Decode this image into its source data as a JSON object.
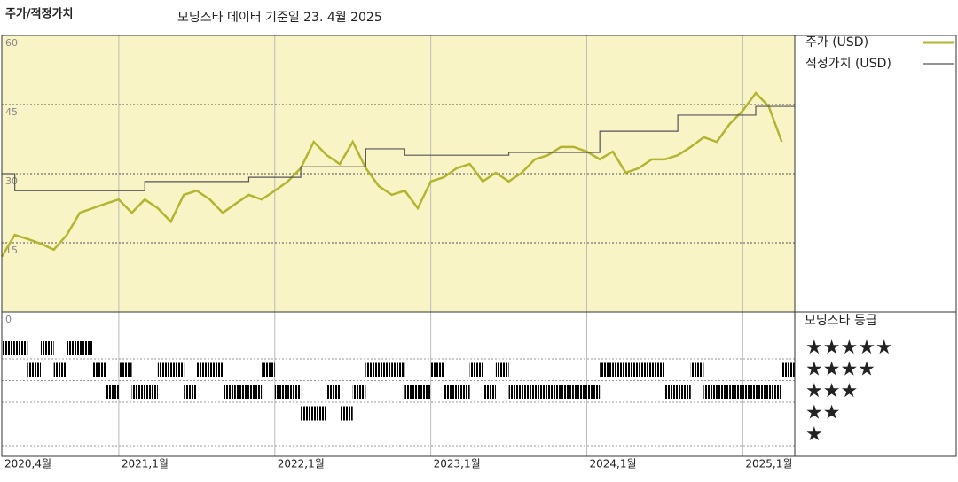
{
  "chart_data": [
    {
      "type": "line",
      "title": "주가/적정가치",
      "subtitle": "모닝스타 데이터 기준일 23. 4월 2025",
      "xlim": [
        "2020-04",
        "2025-05"
      ],
      "xticks": [
        {
          "value": "2020-04",
          "label": "2020,4월"
        },
        {
          "value": "2021-01",
          "label": "2021,1월"
        },
        {
          "value": "2022-01",
          "label": "2022,1월"
        },
        {
          "value": "2023-01",
          "label": "2023,1월"
        },
        {
          "value": "2024-01",
          "label": "2024,1월"
        },
        {
          "value": "2025-01",
          "label": "2025,1월"
        }
      ],
      "ylim": [
        0,
        60
      ],
      "yticks": [
        0,
        15,
        30,
        45,
        60
      ],
      "grid": true,
      "series": [
        {
          "name": "주가 (USD)",
          "color": "#b3b531",
          "step": false,
          "x": [
            "2020-04",
            "2020-05",
            "2020-06",
            "2020-07",
            "2020-08",
            "2020-09",
            "2020-10",
            "2020-11",
            "2020-12",
            "2021-01",
            "2021-02",
            "2021-03",
            "2021-04",
            "2021-05",
            "2021-06",
            "2021-07",
            "2021-08",
            "2021-09",
            "2021-10",
            "2021-11",
            "2021-12",
            "2022-01",
            "2022-02",
            "2022-03",
            "2022-04",
            "2022-05",
            "2022-06",
            "2022-07",
            "2022-08",
            "2022-09",
            "2022-10",
            "2022-11",
            "2022-12",
            "2023-01",
            "2023-02",
            "2023-03",
            "2023-04",
            "2023-05",
            "2023-06",
            "2023-07",
            "2023-08",
            "2023-09",
            "2023-10",
            "2023-11",
            "2023-12",
            "2024-01",
            "2024-02",
            "2024-03",
            "2024-04",
            "2024-05",
            "2024-06",
            "2024-07",
            "2024-08",
            "2024-09",
            "2024-10",
            "2024-11",
            "2024-12",
            "2025-01",
            "2025-02",
            "2025-03",
            "2025-04"
          ],
          "values": [
            12,
            16.7,
            15.8,
            14.8,
            13.5,
            16.7,
            21.5,
            22.5,
            23.5,
            24.4,
            21.5,
            24.4,
            22.5,
            19.6,
            25.4,
            26.3,
            24.4,
            21.5,
            23.5,
            25.4,
            24.4,
            26.3,
            28.3,
            31.2,
            36.9,
            34,
            32.1,
            36.9,
            31.2,
            27.3,
            25.4,
            26.3,
            22.5,
            28.3,
            29.2,
            31.2,
            32.1,
            28.3,
            30.2,
            28.3,
            30.2,
            33.1,
            34,
            35.8,
            35.8,
            34.8,
            33.1,
            34.8,
            30.2,
            31.2,
            33.1,
            33.1,
            34,
            35.8,
            37.9,
            36.9,
            40.8,
            43.7,
            47.5,
            44.6,
            36.9
          ]
        },
        {
          "name": "적정가치 (USD)",
          "color": "#555555",
          "step": true,
          "x": [
            "2020-04",
            "2020-05",
            "2021-03",
            "2021-11",
            "2022-03",
            "2022-08",
            "2022-11",
            "2023-07",
            "2024-02",
            "2024-08",
            "2025-02",
            "2025-05"
          ],
          "values": [
            30,
            26.3,
            28.3,
            29.2,
            31.5,
            35.4,
            34,
            34.6,
            39.2,
            42.7,
            44.6,
            44.6
          ]
        }
      ]
    },
    {
      "type": "rating",
      "title": "모닝스타 등급",
      "categories": [
        "★★★★★",
        "★★★★",
        "★★★",
        "★★",
        "★"
      ],
      "color": "#2b2b2b",
      "highlight_color": "#3d8c70",
      "x": [
        "2020-04",
        "2020-05",
        "2020-06",
        "2020-07",
        "2020-08",
        "2020-09",
        "2020-10",
        "2020-11",
        "2020-12",
        "2021-01",
        "2021-02",
        "2021-03",
        "2021-04",
        "2021-05",
        "2021-06",
        "2021-07",
        "2021-08",
        "2021-09",
        "2021-10",
        "2021-11",
        "2021-12",
        "2022-01",
        "2022-02",
        "2022-03",
        "2022-04",
        "2022-05",
        "2022-06",
        "2022-07",
        "2022-08",
        "2022-09",
        "2022-10",
        "2022-11",
        "2022-12",
        "2023-01",
        "2023-02",
        "2023-03",
        "2023-04",
        "2023-05",
        "2023-06",
        "2023-07",
        "2023-08",
        "2023-09",
        "2023-10",
        "2023-11",
        "2023-12",
        "2024-01",
        "2024-02",
        "2024-03",
        "2024-04",
        "2024-05",
        "2024-06",
        "2024-07",
        "2024-08",
        "2024-09",
        "2024-10",
        "2024-11",
        "2024-12",
        "2025-01",
        "2025-02",
        "2025-03",
        "2025-04"
      ],
      "values": [
        5,
        5,
        4,
        5,
        4,
        5,
        5,
        4,
        3,
        4,
        3,
        3,
        4,
        4,
        3,
        4,
        4,
        3,
        3,
        3,
        4,
        3,
        3,
        2,
        2,
        3,
        2,
        3,
        4,
        4,
        4,
        3,
        3,
        4,
        3,
        3,
        4,
        3,
        4,
        3,
        3,
        3,
        3,
        3,
        3,
        3,
        4,
        4,
        4,
        4,
        4,
        3,
        3,
        4,
        3,
        3,
        3,
        3,
        3,
        3,
        4
      ]
    }
  ]
}
